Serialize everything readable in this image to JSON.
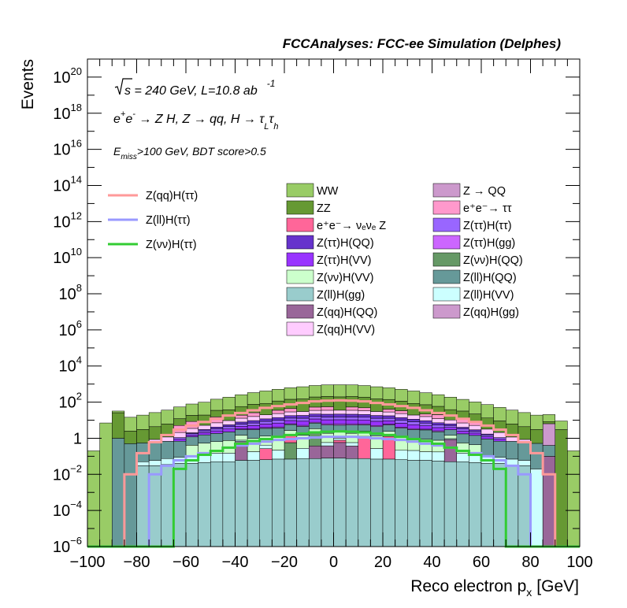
{
  "chart_data": {
    "type": "stacked-histogram",
    "title": "FCCAnalyses: FCC-ee Simulation (Delphes)",
    "xlabel": "Reco electron p",
    "xlabel_sub": "x",
    "xlabel_unit": "[GeV]",
    "ylabel": "Events",
    "log_y": true,
    "xlim": [
      -100,
      100
    ],
    "ylim": [
      1e-06,
      1e+21
    ],
    "x_ticks": [
      "−100",
      "−80",
      "−60",
      "−40",
      "−20",
      "0",
      "20",
      "40",
      "60",
      "80",
      "100"
    ],
    "y_ticks": [
      {
        "base": "10",
        "exp": "20",
        "value": 1e+20
      },
      {
        "base": "10",
        "exp": "18",
        "value": 1e+18
      },
      {
        "base": "10",
        "exp": "16",
        "value": 1e+16
      },
      {
        "base": "10",
        "exp": "14",
        "value": 100000000000000.0
      },
      {
        "base": "10",
        "exp": "12",
        "value": 1000000000000.0
      },
      {
        "base": "10",
        "exp": "10",
        "value": 10000000000.0
      },
      {
        "base": "10",
        "exp": "8",
        "value": 100000000.0
      },
      {
        "base": "10",
        "exp": "6",
        "value": 1000000.0
      },
      {
        "base": "10",
        "exp": "4",
        "value": 10000.0
      },
      {
        "base": "10",
        "exp": "2",
        "value": 100.0
      },
      {
        "base": "1",
        "exp": "",
        "value": 1
      },
      {
        "base": "10",
        "exp": "−2",
        "value": 0.01
      },
      {
        "base": "10",
        "exp": "−4",
        "value": 0.0001
      },
      {
        "base": "10",
        "exp": "−6",
        "value": 1e-06
      }
    ],
    "annotations": {
      "energy": "s = 240 GeV, L=10.8 ab",
      "energy_exp": "-1",
      "process": "e⁺e⁻ → Z H, Z → qq, H → τ_L τ_h",
      "process_parts": {
        "a": "e",
        "a_sup": "+",
        "b": "e",
        "b_sup": "-",
        "c": " → Z H, Z  → qq, H  →  τ",
        "c_sub": "L",
        "d": "τ",
        "d_sub": "h"
      },
      "cut_E": "E",
      "cut_sub": "miss",
      "cut_rest": ">100 GeV, BDT score>0.5"
    },
    "x_edges": [
      -100,
      -95,
      -90,
      -85,
      -80,
      -75,
      -70,
      -65,
      -60,
      -55,
      -50,
      -45,
      -40,
      -35,
      -30,
      -25,
      -20,
      -15,
      -10,
      -5,
      0,
      5,
      10,
      15,
      20,
      25,
      30,
      35,
      40,
      45,
      50,
      55,
      60,
      65,
      70,
      75,
      80,
      85,
      90,
      95,
      100
    ],
    "stack_bottom_to_top": [
      "Z(ll)H(gg)",
      "Z(qq)H(QQ)",
      "Z(νν)H(QQ)",
      "e⁺e⁻→νeνe Z",
      "Z(ll)H(VV)",
      "Z(qq)H(gg)",
      "Z(νν)H(VV)",
      "Z(ll)H(QQ)",
      "Z(ττ)H(gg)",
      "Z(ττ)H(VV)",
      "Z(ττ)H(ττ)",
      "Z(ττ)H(QQ)",
      "Z(qq)H(VV)",
      "e⁺e⁻→ττ",
      "Z→QQ",
      "ZZ",
      "WW"
    ],
    "stack_series": [
      {
        "name": "Z(ll)H(gg)",
        "color": "#99cccc",
        "values": [
          0,
          0,
          0,
          0,
          0.03,
          0.03,
          0.035,
          0.04,
          0.04,
          0.045,
          0.05,
          0.05,
          0.06,
          0.06,
          0.065,
          0.07,
          0.07,
          0.075,
          0.075,
          0.08,
          0.08,
          0.075,
          0.075,
          0.07,
          0.07,
          0.065,
          0.06,
          0.06,
          0.055,
          0.05,
          0.05,
          0.045,
          0.04,
          0.04,
          0.03,
          0.03,
          0,
          0,
          0,
          0
        ]
      },
      {
        "name": "Z(qq)H(QQ)",
        "color": "#996699",
        "values": [
          0,
          0,
          0,
          0,
          0,
          0,
          0,
          0,
          0,
          0,
          0,
          0,
          0.6,
          0,
          0,
          0,
          0,
          0,
          0.3,
          0.3,
          0.5,
          0.3,
          0,
          0,
          0,
          0,
          0,
          0,
          0,
          0.8,
          0,
          0,
          0,
          0,
          0,
          0,
          0,
          0.1,
          0,
          0
        ]
      },
      {
        "name": "Z(νν)H(QQ)",
        "color": "#669966",
        "values": [
          0,
          0,
          0,
          0,
          0,
          0,
          0,
          0,
          0,
          0,
          0,
          0,
          0,
          0,
          0,
          0,
          0.5,
          0,
          1.5,
          0,
          0,
          0,
          0,
          0,
          0,
          0,
          0,
          0,
          0,
          0,
          0,
          0,
          0,
          0,
          0,
          0,
          0,
          0,
          0,
          0
        ]
      },
      {
        "name": "e⁺e⁻→νeνe Z",
        "color": "#ff6699",
        "values": [
          0,
          0,
          0,
          0,
          0,
          0,
          0,
          0,
          0,
          0,
          0,
          0,
          0,
          0,
          0.2,
          0,
          0.9,
          0,
          0,
          0,
          0.2,
          0,
          1.0,
          0,
          1.2,
          0,
          0,
          0,
          0,
          0,
          0,
          0,
          0,
          0,
          0,
          0,
          0,
          0,
          0,
          0
        ]
      },
      {
        "name": "Z(ll)H(VV)",
        "color": "#ccffff",
        "values": [
          0,
          0,
          0,
          0,
          0.02,
          0.03,
          0.04,
          0.05,
          0.07,
          0.09,
          0.1,
          0.1,
          0.12,
          0.12,
          0.15,
          0.15,
          0.15,
          0.2,
          0.2,
          0.2,
          0.2,
          0.2,
          0.2,
          0.2,
          0.15,
          0.15,
          0.15,
          0.12,
          0.12,
          0.1,
          0.1,
          0.09,
          0.07,
          0.05,
          0.04,
          0.03,
          0.02,
          0,
          0,
          0
        ]
      },
      {
        "name": "Z(qq)H(gg)",
        "color": "#cc99cc",
        "values": [
          0,
          0,
          0,
          0,
          0,
          0,
          0,
          0,
          0,
          0,
          0,
          0,
          0,
          0,
          0,
          0,
          0,
          0,
          0,
          0,
          0,
          0,
          0,
          0,
          0,
          0,
          0,
          0,
          0,
          0,
          0,
          0,
          0,
          0,
          0,
          0,
          0,
          0,
          0,
          0
        ]
      },
      {
        "name": "Z(νν)H(VV)",
        "color": "#ccffcc",
        "values": [
          0,
          0,
          0,
          0,
          0,
          0,
          0,
          0,
          0.3,
          0.4,
          0.5,
          0.6,
          0.7,
          0.8,
          0.9,
          1.0,
          1.1,
          1.2,
          1.3,
          1.3,
          1.3,
          1.3,
          1.2,
          1.1,
          1.0,
          0.9,
          0.8,
          0.7,
          0.6,
          0.5,
          0.4,
          0.3,
          0,
          0,
          0,
          0,
          0,
          0,
          0,
          0
        ]
      },
      {
        "name": "Z(ll)H(QQ)",
        "color": "#669999",
        "values": [
          0,
          0,
          1.0,
          0.5,
          0.5,
          0.5,
          0.6,
          0.6,
          0.8,
          1.0,
          1.2,
          1.5,
          1.5,
          2.0,
          2.2,
          2.5,
          3.0,
          3.0,
          3.5,
          3.5,
          3.0,
          3.5,
          3.0,
          3.0,
          3.0,
          2.5,
          2.0,
          2.0,
          1.5,
          1.5,
          1.2,
          1.0,
          0.8,
          0.6,
          0.6,
          0.5,
          0.5,
          0.3,
          0,
          0
        ]
      },
      {
        "name": "Z(ττ)H(gg)",
        "color": "#cc66ff",
        "values": [
          0,
          0,
          0,
          0,
          0,
          0,
          0,
          0,
          0,
          0,
          0,
          0,
          0.3,
          0.3,
          0.4,
          0.5,
          0.6,
          0.7,
          0.8,
          0.9,
          1.0,
          0.9,
          0.8,
          0.7,
          0.6,
          0.5,
          0.4,
          0.3,
          0.3,
          0,
          0,
          0,
          0,
          0,
          0,
          0,
          0,
          0,
          0,
          0
        ]
      },
      {
        "name": "Z(ττ)H(VV)",
        "color": "#9933ff",
        "values": [
          0,
          0,
          0,
          0,
          0,
          0,
          0,
          0.2,
          0.3,
          0.5,
          0.7,
          1.0,
          1.3,
          1.7,
          2.2,
          2.7,
          3.2,
          3.6,
          4.0,
          4.2,
          4.3,
          4.2,
          4.0,
          3.6,
          3.2,
          2.7,
          2.2,
          1.7,
          1.3,
          1.0,
          0.7,
          0.5,
          0.3,
          0.2,
          0,
          0,
          0,
          0,
          0,
          0
        ]
      },
      {
        "name": "Z(ττ)H(ττ)",
        "color": "#9966ff",
        "values": [
          0,
          0,
          0,
          0,
          0,
          0,
          0,
          0.2,
          0.3,
          0.5,
          0.8,
          1.1,
          1.5,
          2.0,
          2.5,
          3.0,
          3.5,
          4.0,
          4.3,
          4.5,
          4.6,
          4.5,
          4.3,
          4.0,
          3.5,
          3.0,
          2.5,
          2.0,
          1.5,
          1.1,
          0.8,
          0.5,
          0.3,
          0.2,
          0,
          0,
          0,
          0,
          0,
          0
        ]
      },
      {
        "name": "Z(ττ)H(QQ)",
        "color": "#6633cc",
        "values": [
          0,
          0,
          0,
          0,
          0,
          0,
          0,
          0,
          0.2,
          0.5,
          0.8,
          1.2,
          1.8,
          2.5,
          3.2,
          4.0,
          4.8,
          5.5,
          6.0,
          6.4,
          6.5,
          6.4,
          6.0,
          5.5,
          4.8,
          4.0,
          3.2,
          2.5,
          1.8,
          1.2,
          0.8,
          0.5,
          0.2,
          0,
          0,
          0,
          0,
          0,
          0,
          0
        ]
      },
      {
        "name": "Z(qq)H(VV)",
        "color": "#ffccff",
        "values": [
          0,
          0,
          0,
          0,
          0,
          0.3,
          0.5,
          1.0,
          1.5,
          2.2,
          3.0,
          4.0,
          5.0,
          6.5,
          8.0,
          9.5,
          11,
          12,
          13,
          14,
          14,
          14,
          13,
          12,
          11,
          9.5,
          8.0,
          6.5,
          5.0,
          4.0,
          3.0,
          2.2,
          1.5,
          1.0,
          0.5,
          0.3,
          0,
          0,
          0,
          0
        ]
      },
      {
        "name": "e⁺e⁻→ττ",
        "color": "#ff99cc",
        "values": [
          0,
          0,
          0,
          0,
          0,
          0,
          0,
          3.0,
          5.0,
          0,
          8.0,
          0,
          6.0,
          10,
          0,
          12,
          15,
          0,
          18,
          20,
          0,
          18,
          15,
          0,
          12,
          10,
          0,
          6.0,
          8.0,
          0,
          5.0,
          3.0,
          0,
          0,
          0,
          0,
          0,
          0,
          0,
          0
        ]
      },
      {
        "name": "Z→QQ",
        "color": "#cc99cc",
        "values": [
          0,
          0,
          0,
          0,
          0,
          0,
          0,
          0,
          0,
          0,
          0,
          0,
          0,
          0,
          0,
          0,
          0,
          0,
          0,
          0,
          0,
          0,
          0,
          0,
          0,
          0,
          0,
          0,
          0,
          0,
          0,
          0,
          0,
          0,
          0,
          0,
          0,
          6.0,
          0,
          0
        ]
      },
      {
        "name": "ZZ",
        "color": "#669933",
        "values": [
          0,
          0,
          25,
          2,
          2.5,
          3.5,
          5,
          7,
          10,
          14,
          20,
          28,
          38,
          50,
          65,
          80,
          100,
          120,
          140,
          150,
          160,
          150,
          140,
          120,
          100,
          80,
          65,
          50,
          38,
          28,
          20,
          14,
          10,
          7,
          5,
          3.5,
          2.5,
          2,
          3,
          0
        ]
      },
      {
        "name": "WW",
        "color": "#99cc66",
        "values": [
          0.2,
          7,
          6,
          12,
          16,
          22,
          30,
          42,
          60,
          80,
          110,
          150,
          200,
          260,
          330,
          400,
          480,
          560,
          640,
          700,
          720,
          700,
          640,
          560,
          480,
          400,
          330,
          260,
          200,
          150,
          110,
          80,
          60,
          42,
          30,
          22,
          16,
          12,
          6,
          0.2
        ]
      }
    ],
    "line_series": [
      {
        "name": "Z(qq)H(ττ)",
        "color": "#ff9999",
        "values": [
          0,
          0,
          0,
          0.01,
          0.15,
          0.6,
          1.5,
          3,
          5,
          8,
          12,
          18,
          25,
          35,
          48,
          60,
          75,
          90,
          110,
          120,
          125,
          120,
          110,
          90,
          75,
          60,
          48,
          35,
          25,
          18,
          12,
          8,
          5,
          3,
          1.5,
          0.6,
          0.15,
          0.01,
          0,
          0
        ]
      },
      {
        "name": "Z(ll)H(ττ)",
        "color": "#9999ff",
        "values": [
          0,
          0,
          0,
          0,
          0,
          0.01,
          0.03,
          0.06,
          0.1,
          0.15,
          0.2,
          0.3,
          0.4,
          0.5,
          0.65,
          0.8,
          0.9,
          1.0,
          1.1,
          1.2,
          1.2,
          1.2,
          1.1,
          1.0,
          0.9,
          0.8,
          0.65,
          0.5,
          0.4,
          0.3,
          0.2,
          0.15,
          0.1,
          0.06,
          0.03,
          0.01,
          0,
          0,
          0,
          0
        ]
      },
      {
        "name": "Z(νν)H(ττ)",
        "color": "#33cc33",
        "values": [
          0,
          0,
          0,
          0,
          0,
          0,
          0,
          0.02,
          0.06,
          0.12,
          0.2,
          0.3,
          0.5,
          0.7,
          0.9,
          1.2,
          1.5,
          1.8,
          2.1,
          2.3,
          2.4,
          2.3,
          2.1,
          1.8,
          1.5,
          1.2,
          0.9,
          0.7,
          0.5,
          0.3,
          0.2,
          0.12,
          0.06,
          0.02,
          0,
          0,
          0,
          0,
          0,
          0
        ]
      }
    ],
    "legend_lines": [
      {
        "name": "Z(qq)H(ττ)",
        "color": "#ff9999"
      },
      {
        "name": "Z(ll)H(ττ)",
        "color": "#9999ff"
      },
      {
        "name": "Z(νν)H(ττ)",
        "color": "#33cc33"
      }
    ],
    "legend_fills": [
      {
        "name": "WW",
        "color": "#99cc66"
      },
      {
        "name": "Z → QQ",
        "color": "#cc99cc"
      },
      {
        "name": "ZZ",
        "color": "#669933"
      },
      {
        "name": "e⁺e⁻→ ττ",
        "color": "#ff99cc"
      },
      {
        "name": "e⁺e⁻→ νₑνₑ Z",
        "color": "#ff6699"
      },
      {
        "name": "Z(ττ)H(ττ)",
        "color": "#9966ff"
      },
      {
        "name": "Z(ττ)H(QQ)",
        "color": "#6633cc"
      },
      {
        "name": "Z(ττ)H(gg)",
        "color": "#cc66ff"
      },
      {
        "name": "Z(ττ)H(VV)",
        "color": "#9933ff"
      },
      {
        "name": "Z(νν)H(QQ)",
        "color": "#669966"
      },
      {
        "name": "Z(νν)H(VV)",
        "color": "#ccffcc"
      },
      {
        "name": "Z(ll)H(QQ)",
        "color": "#669999"
      },
      {
        "name": "Z(ll)H(gg)",
        "color": "#99cccc"
      },
      {
        "name": "Z(ll)H(VV)",
        "color": "#ccffff"
      },
      {
        "name": "Z(qq)H(QQ)",
        "color": "#996699"
      },
      {
        "name": "Z(qq)H(gg)",
        "color": "#cc99cc"
      },
      {
        "name": "Z(qq)H(VV)",
        "color": "#ffccff"
      }
    ],
    "legend_placement": "upper-middle, two columns plus line-entry column at left",
    "grid": false
  }
}
